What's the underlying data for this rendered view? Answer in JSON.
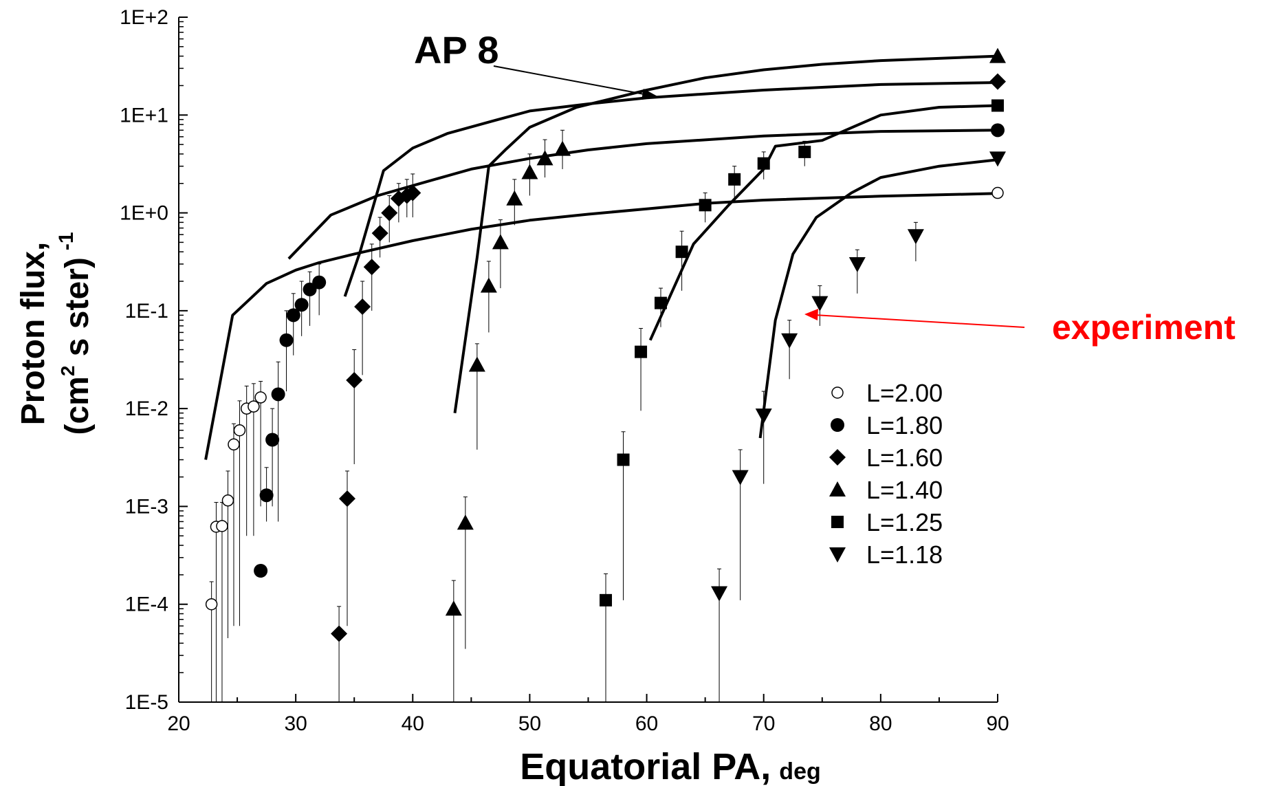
{
  "chart_data": {
    "type": "scatter",
    "title": "",
    "xlabel": "Equatorial PA,",
    "xlabel_unit": "deg",
    "ylabel_line1": "Proton flux,",
    "ylabel_line2_prefix": "(cm",
    "ylabel_line2_sup": "2",
    "ylabel_line2_suffix": " s ster)",
    "ylabel_exp": "-1",
    "xlim": [
      20,
      90
    ],
    "ylim": [
      1e-05,
      100
    ],
    "yscale": "log",
    "x_ticks": [
      20,
      30,
      40,
      50,
      60,
      70,
      80,
      90
    ],
    "x_tick_labels": [
      "20",
      "30",
      "40",
      "50",
      "60",
      "70",
      "80",
      "90"
    ],
    "y_ticks": [
      1e-05,
      0.0001,
      0.001,
      0.01,
      0.1,
      1,
      10,
      100
    ],
    "y_tick_labels": [
      "1E-5",
      "1E-4",
      "1E-3",
      "1E-2",
      "1E-1",
      "1E+0",
      "1E+1",
      "1E+2"
    ],
    "legend": {
      "placement": "lower-right"
    },
    "annotations": {
      "model": {
        "text": "AP 8",
        "color": "#000000"
      },
      "experiment": {
        "text": "experiment",
        "color": "#ff0000"
      }
    },
    "series": [
      {
        "name": "L=2.00",
        "marker": "open-circle",
        "points": [
          [
            22.8,
            0.0001
          ],
          [
            23.2,
            0.00062
          ],
          [
            23.7,
            0.00063
          ],
          [
            24.2,
            0.00115
          ],
          [
            24.7,
            0.0043
          ],
          [
            25.2,
            0.006
          ],
          [
            25.8,
            0.01
          ],
          [
            26.4,
            0.0105
          ],
          [
            27.0,
            0.013
          ],
          [
            90,
            1.6
          ]
        ],
        "err_low": [
          1e-05,
          1e-05,
          1e-05,
          4.5e-05,
          6e-05,
          6e-05,
          0.0005,
          0.0005,
          0.001,
          1.6
        ],
        "err_high": [
          0.00017,
          0.0011,
          0.0011,
          0.0023,
          0.007,
          0.012,
          0.017,
          0.018,
          0.019,
          1.6
        ]
      },
      {
        "name": "L=1.80",
        "marker": "filled-circle",
        "points": [
          [
            27.0,
            0.00022
          ],
          [
            27.5,
            0.0013
          ],
          [
            28.0,
            0.0048
          ],
          [
            28.5,
            0.014
          ],
          [
            29.2,
            0.05
          ],
          [
            29.8,
            0.09
          ],
          [
            30.5,
            0.115
          ],
          [
            31.2,
            0.165
          ],
          [
            32.0,
            0.195
          ],
          [
            90,
            7.0
          ]
        ],
        "err_low": [
          0.00022,
          0.0007,
          0.001,
          0.0007,
          0.015,
          0.035,
          0.055,
          0.07,
          0.09,
          7.0
        ],
        "err_high": [
          0.00022,
          0.0025,
          0.01,
          0.03,
          0.1,
          0.15,
          0.2,
          0.25,
          0.3,
          7.0
        ]
      },
      {
        "name": "L=1.60",
        "marker": "diamond",
        "points": [
          [
            33.7,
            5e-05
          ],
          [
            34.4,
            0.0012
          ],
          [
            35.0,
            0.0195
          ],
          [
            35.7,
            0.11
          ],
          [
            36.5,
            0.28
          ],
          [
            37.2,
            0.62
          ],
          [
            38.0,
            1.0
          ],
          [
            38.8,
            1.4
          ],
          [
            39.5,
            1.5
          ],
          [
            40.0,
            1.6
          ],
          [
            90,
            22.0
          ]
        ],
        "err_low": [
          1e-05,
          6e-05,
          0.0027,
          0.022,
          0.1,
          0.35,
          0.5,
          0.8,
          0.9,
          0.9,
          22.0
        ],
        "err_high": [
          9.5e-05,
          0.0023,
          0.04,
          0.2,
          0.48,
          0.9,
          1.5,
          2.0,
          2.2,
          2.5,
          22.0
        ]
      },
      {
        "name": "L=1.40",
        "marker": "triangle-up",
        "points": [
          [
            43.5,
            9e-05
          ],
          [
            44.5,
            0.00068
          ],
          [
            45.5,
            0.028
          ],
          [
            46.5,
            0.18
          ],
          [
            47.5,
            0.5
          ],
          [
            48.7,
            1.4
          ],
          [
            50.0,
            2.6
          ],
          [
            51.3,
            3.6
          ],
          [
            52.8,
            4.5
          ],
          [
            90,
            40.0
          ]
        ],
        "err_low": [
          1e-05,
          3.5e-05,
          0.0038,
          0.06,
          0.17,
          0.75,
          1.5,
          2.3,
          2.8,
          40.0
        ],
        "err_high": [
          0.000175,
          0.00125,
          0.046,
          0.32,
          0.85,
          2.2,
          4.0,
          5.6,
          7.0,
          40.0
        ]
      },
      {
        "name": "L=1.25",
        "marker": "square",
        "points": [
          [
            56.5,
            0.00011
          ],
          [
            58.0,
            0.003
          ],
          [
            59.5,
            0.038
          ],
          [
            61.2,
            0.12
          ],
          [
            63.0,
            0.4
          ],
          [
            65.0,
            1.2
          ],
          [
            67.5,
            2.2
          ],
          [
            70.0,
            3.2
          ],
          [
            73.5,
            4.2
          ],
          [
            90,
            12.5
          ]
        ],
        "err_low": [
          1e-05,
          0.00011,
          0.0095,
          0.068,
          0.16,
          0.8,
          1.4,
          2.2,
          3.0,
          12.5
        ],
        "err_high": [
          0.000205,
          0.0058,
          0.066,
          0.17,
          0.65,
          1.6,
          3.0,
          4.2,
          5.4,
          12.5
        ]
      },
      {
        "name": "L=1.18",
        "marker": "triangle-down",
        "points": [
          [
            66.2,
            0.00013
          ],
          [
            68.0,
            0.002
          ],
          [
            70.0,
            0.0085
          ],
          [
            72.2,
            0.05
          ],
          [
            74.8,
            0.12
          ],
          [
            78.0,
            0.3
          ],
          [
            83.0,
            0.58
          ],
          [
            90,
            3.6
          ]
        ],
        "err_low": [
          1e-05,
          0.00011,
          0.0017,
          0.02,
          0.07,
          0.15,
          0.32,
          3.6
        ],
        "err_high": [
          0.00023,
          0.0038,
          0.015,
          0.08,
          0.18,
          0.42,
          0.8,
          3.6
        ]
      }
    ],
    "model_curves": [
      {
        "name": "L=2.00",
        "points": [
          [
            22.3,
            0.003
          ],
          [
            24.6,
            0.09
          ],
          [
            27.5,
            0.19
          ],
          [
            30,
            0.26
          ],
          [
            32,
            0.31
          ],
          [
            35,
            0.38
          ],
          [
            40,
            0.52
          ],
          [
            45,
            0.68
          ],
          [
            50,
            0.84
          ],
          [
            55,
            0.97
          ],
          [
            60,
            1.1
          ],
          [
            65,
            1.25
          ],
          [
            70,
            1.35
          ],
          [
            80,
            1.48
          ],
          [
            90,
            1.58
          ]
        ]
      },
      {
        "name": "L=1.80",
        "points": [
          [
            29.4,
            0.34
          ],
          [
            33,
            0.95
          ],
          [
            37,
            1.5
          ],
          [
            40,
            1.9
          ],
          [
            45,
            2.8
          ],
          [
            50,
            3.6
          ],
          [
            55,
            4.4
          ],
          [
            60,
            5.1
          ],
          [
            70,
            6.1
          ],
          [
            80,
            6.8
          ],
          [
            90,
            7.0
          ]
        ]
      },
      {
        "name": "L=1.60",
        "points": [
          [
            34.2,
            0.14
          ],
          [
            35.5,
            0.4
          ],
          [
            37.5,
            2.7
          ],
          [
            40,
            4.6
          ],
          [
            43,
            6.5
          ],
          [
            47,
            8.8
          ],
          [
            50,
            11
          ],
          [
            55,
            13
          ],
          [
            60,
            15
          ],
          [
            70,
            18
          ],
          [
            80,
            20.5
          ],
          [
            90,
            21.5
          ]
        ]
      },
      {
        "name": "L=1.40",
        "points": [
          [
            43.6,
            0.009
          ],
          [
            45.5,
            0.35
          ],
          [
            46.5,
            3.0
          ],
          [
            48,
            4.5
          ],
          [
            50,
            7.5
          ],
          [
            54,
            12
          ],
          [
            60,
            18
          ],
          [
            65,
            24
          ],
          [
            70,
            29
          ],
          [
            75,
            33
          ],
          [
            80,
            36
          ],
          [
            90,
            40
          ]
        ]
      },
      {
        "name": "L=1.25",
        "points": [
          [
            60.3,
            0.05
          ],
          [
            64,
            0.48
          ],
          [
            67,
            1.2
          ],
          [
            70,
            2.8
          ],
          [
            71,
            4.8
          ],
          [
            75,
            5.5
          ],
          [
            80,
            10
          ],
          [
            85,
            12
          ],
          [
            90,
            12.5
          ]
        ]
      },
      {
        "name": "L=1.18",
        "points": [
          [
            69.7,
            0.005
          ],
          [
            71,
            0.08
          ],
          [
            72.5,
            0.38
          ],
          [
            74.5,
            0.9
          ],
          [
            77.5,
            1.6
          ],
          [
            80,
            2.3
          ],
          [
            85,
            3.0
          ],
          [
            90,
            3.5
          ]
        ]
      }
    ]
  }
}
